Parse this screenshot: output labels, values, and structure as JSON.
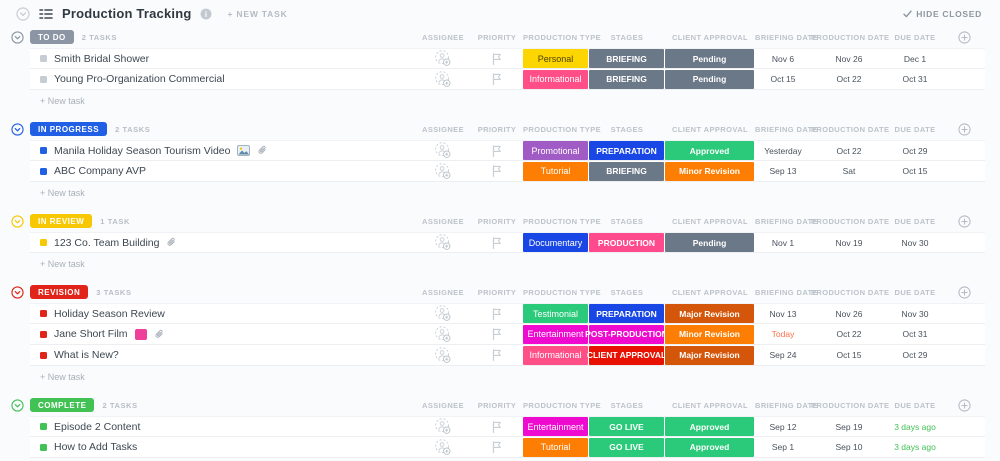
{
  "header": {
    "title": "Production Tracking",
    "new_task_label": "+ NEW TASK",
    "hide_closed_label": "HIDE CLOSED"
  },
  "columns": [
    "ASSIGNEE",
    "PRIORITY",
    "PRODUCTION TYPE",
    "STAGES",
    "CLIENT APPROVAL",
    "BRIEFING DATE",
    "PRODUCTION DATE",
    "DUE DATE"
  ],
  "add_task_label": "+ New task",
  "icons": {
    "collapse_all": "chevron-down-circle",
    "list_view": "list",
    "info": "info-circle",
    "hide_closed_check": "check",
    "assignee": "person-add",
    "priority": "flag",
    "add_column": "plus-circle",
    "attachment": "paperclip",
    "image_thumbnail": "photo"
  },
  "groups": [
    {
      "name": "TO DO",
      "count": "2 TASKS",
      "color": "#8b95a3",
      "square": "#c6ccd3",
      "tasks": [
        {
          "name": "Smith Bridal Shower",
          "type": {
            "label": "Personal",
            "bg": "#fdd500",
            "fg": "#4d4400"
          },
          "stage": {
            "label": "BRIEFING",
            "bg": "#6b7888"
          },
          "approval": {
            "label": "Pending",
            "bg": "#6b7888"
          },
          "briefing": {
            "label": "Nov 6"
          },
          "production": {
            "label": "Nov 26"
          },
          "due": {
            "label": "Dec 1"
          }
        },
        {
          "name": "Young Pro-Organization Commercial",
          "type": {
            "label": "Informational",
            "bg": "#ff4f86",
            "fg": "#ffffff"
          },
          "stage": {
            "label": "BRIEFING",
            "bg": "#6b7888"
          },
          "approval": {
            "label": "Pending",
            "bg": "#6b7888"
          },
          "briefing": {
            "label": "Oct 15"
          },
          "production": {
            "label": "Oct 22"
          },
          "due": {
            "label": "Oct 31"
          }
        }
      ]
    },
    {
      "name": "IN PROGRESS",
      "count": "2 TASKS",
      "color": "#2160e4",
      "square": "#2160e4",
      "tasks": [
        {
          "name": "Manila Holiday Season Tourism Video",
          "thumb": "photo",
          "clip": true,
          "type": {
            "label": "Promotional",
            "bg": "#a05bc4",
            "fg": "#ffffff"
          },
          "stage": {
            "label": "PREPARATION",
            "bg": "#1947e5"
          },
          "approval": {
            "label": "Approved",
            "bg": "#2bc97a"
          },
          "briefing": {
            "label": "Yesterday"
          },
          "production": {
            "label": "Oct 22"
          },
          "due": {
            "label": "Oct 29"
          }
        },
        {
          "name": "ABC Company AVP",
          "type": {
            "label": "Tutorial",
            "bg": "#fd7e02",
            "fg": "#ffffff"
          },
          "stage": {
            "label": "BRIEFING",
            "bg": "#6b7888"
          },
          "approval": {
            "label": "Minor Revision",
            "bg": "#fd7e02"
          },
          "briefing": {
            "label": "Sep 13"
          },
          "production": {
            "label": "Sat"
          },
          "due": {
            "label": "Oct 15"
          }
        }
      ]
    },
    {
      "name": "IN REVIEW",
      "count": "1 TASK",
      "color": "#f7c802",
      "square": "#f7c802",
      "tasks": [
        {
          "name": "123 Co. Team Building",
          "clip": true,
          "type": {
            "label": "Documentary",
            "bg": "#1947e5",
            "fg": "#ffffff"
          },
          "stage": {
            "label": "PRODUCTION",
            "bg": "#ff4a8d"
          },
          "approval": {
            "label": "Pending",
            "bg": "#6b7888"
          },
          "briefing": {
            "label": "Nov 1"
          },
          "production": {
            "label": "Nov 19"
          },
          "due": {
            "label": "Nov 30"
          }
        }
      ]
    },
    {
      "name": "REVISION",
      "count": "3 TASKS",
      "color": "#e02419",
      "square": "#e02419",
      "tasks": [
        {
          "name": "Holiday Season Review",
          "type": {
            "label": "Testimonial",
            "bg": "#2bc97a",
            "fg": "#ffffff"
          },
          "stage": {
            "label": "PREPARATION",
            "bg": "#1947e5"
          },
          "approval": {
            "label": "Major Revision",
            "bg": "#d4560a"
          },
          "briefing": {
            "label": "Nov 13"
          },
          "production": {
            "label": "Nov 26"
          },
          "due": {
            "label": "Nov 30"
          }
        },
        {
          "name": "Jane Short Film",
          "thumb": "pink",
          "clip": true,
          "thumb_color": "#ee3f9b",
          "type": {
            "label": "Entertainment",
            "bg": "#ef0ad0",
            "fg": "#ffffff"
          },
          "stage": {
            "label": "POST-PRODUCTION",
            "bg": "#ef0ad0"
          },
          "approval": {
            "label": "Minor Revision",
            "bg": "#fd7e02"
          },
          "briefing": {
            "label": "Today",
            "color": "#fd7149"
          },
          "production": {
            "label": "Oct 22"
          },
          "due": {
            "label": "Oct 31"
          }
        },
        {
          "name": "What is New?",
          "type": {
            "label": "Informational",
            "bg": "#ff4f86",
            "fg": "#ffffff"
          },
          "stage": {
            "label": "CLIENT APPROVAL",
            "bg": "#e81202"
          },
          "approval": {
            "label": "Major Revision",
            "bg": "#d4560a"
          },
          "briefing": {
            "label": "Sep 24"
          },
          "production": {
            "label": "Oct 15"
          },
          "due": {
            "label": "Oct 29"
          }
        }
      ]
    },
    {
      "name": "COMPLETE",
      "count": "2 TASKS",
      "color": "#42c155",
      "square": "#42c155",
      "tasks": [
        {
          "name": "Episode 2 Content",
          "type": {
            "label": "Entertainment",
            "bg": "#ef0ad0",
            "fg": "#ffffff"
          },
          "stage": {
            "label": "GO LIVE",
            "bg": "#2bc97a"
          },
          "approval": {
            "label": "Approved",
            "bg": "#2bc97a"
          },
          "briefing": {
            "label": "Sep 12"
          },
          "production": {
            "label": "Sep 19"
          },
          "due": {
            "label": "3 days ago",
            "color": "#42c155"
          }
        },
        {
          "name": "How to Add Tasks",
          "type": {
            "label": "Tutorial",
            "bg": "#fd7e02",
            "fg": "#ffffff"
          },
          "stage": {
            "label": "GO LIVE",
            "bg": "#2bc97a"
          },
          "approval": {
            "label": "Approved",
            "bg": "#2bc97a"
          },
          "briefing": {
            "label": "Sep 1"
          },
          "production": {
            "label": "Sep 10"
          },
          "due": {
            "label": "3 days ago",
            "color": "#42c155"
          }
        }
      ]
    }
  ]
}
